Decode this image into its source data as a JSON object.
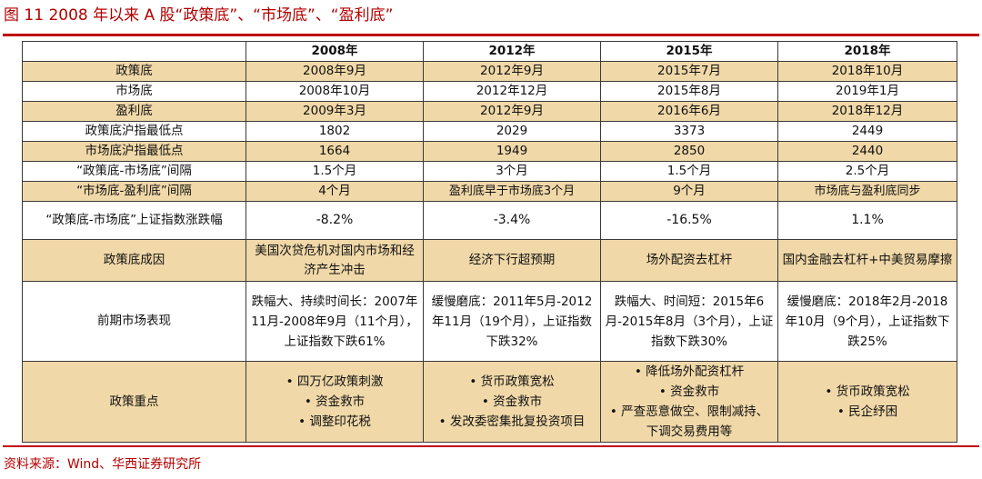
{
  "title": "图 11  2008 年以来 A 股“政策底”、“市场底”、“盈利底”",
  "source": "资料来源：Wind、华西证券研究所",
  "table": {
    "header": [
      "",
      "2008年",
      "2012年",
      "2015年",
      "2018年"
    ],
    "rows": [
      {
        "label": "政策底",
        "cells": [
          "2008年9月",
          "2012年9月",
          "2015年7月",
          "2018年10月"
        ]
      },
      {
        "label": "市场底",
        "cells": [
          "2008年10月",
          "2012年12月",
          "2015年8月",
          "2019年1月"
        ]
      },
      {
        "label": "盈利底",
        "cells": [
          "2009年3月",
          "2012年9月",
          "2016年6月",
          "2018年12月"
        ]
      },
      {
        "label": "政策底沪指最低点",
        "cells": [
          "1802",
          "2029",
          "3373",
          "2449"
        ]
      },
      {
        "label": "市场底沪指最低点",
        "cells": [
          "1664",
          "1949",
          "2850",
          "2440"
        ]
      },
      {
        "label": "“政策底-市场底”间隔",
        "cells": [
          "1.5个月",
          "3个月",
          "1.5个月",
          "2.5个月"
        ]
      },
      {
        "label": "“市场底-盈利底”间隔",
        "cells": [
          "4个月",
          "盈利底早于市场底3个月",
          "9个月",
          "市场底与盈利底同步"
        ]
      },
      {
        "label": "“政策底-市场底”上证指数涨跌幅",
        "cells": [
          "-8.2%",
          "-3.4%",
          "-16.5%",
          "1.1%"
        ]
      },
      {
        "label": "政策底成因",
        "cells": [
          "美国次贷危机对国内市场和经济产生冲击",
          "经济下行超预期",
          "场外配资去杠杆",
          "国内金融去杠杆+中美贸易摩擦"
        ]
      },
      {
        "label": "前期市场表现",
        "cells": [
          "跌幅大、持续时间长：2007年11月-2008年9月（11个月），上证指数下跌61%",
          "缓慢磨底：2011年5月-2012年11月（19个月），上证指数下跌32%",
          "跌幅大、时间短：2015年6月-2015年8月（3个月），上证指数下跌30%",
          "缓慢磨底：2018年2月-2018年10月（9个月），上证指数下跌25%"
        ]
      },
      {
        "label": "政策重点",
        "cells": [
          [
            "• 四万亿政策刺激",
            "• 资金救市",
            "• 调整印花税"
          ],
          [
            "• 货币政策宽松",
            "• 资金救市",
            "• 发改委密集批复投资项目"
          ],
          [
            "• 降低场外配资杠杆",
            "• 资金救市",
            "• 严查恶意做空、限制减持、下调交易费用等"
          ],
          [
            "• 货币政策宽松",
            "• 民企纾困"
          ]
        ]
      }
    ]
  }
}
